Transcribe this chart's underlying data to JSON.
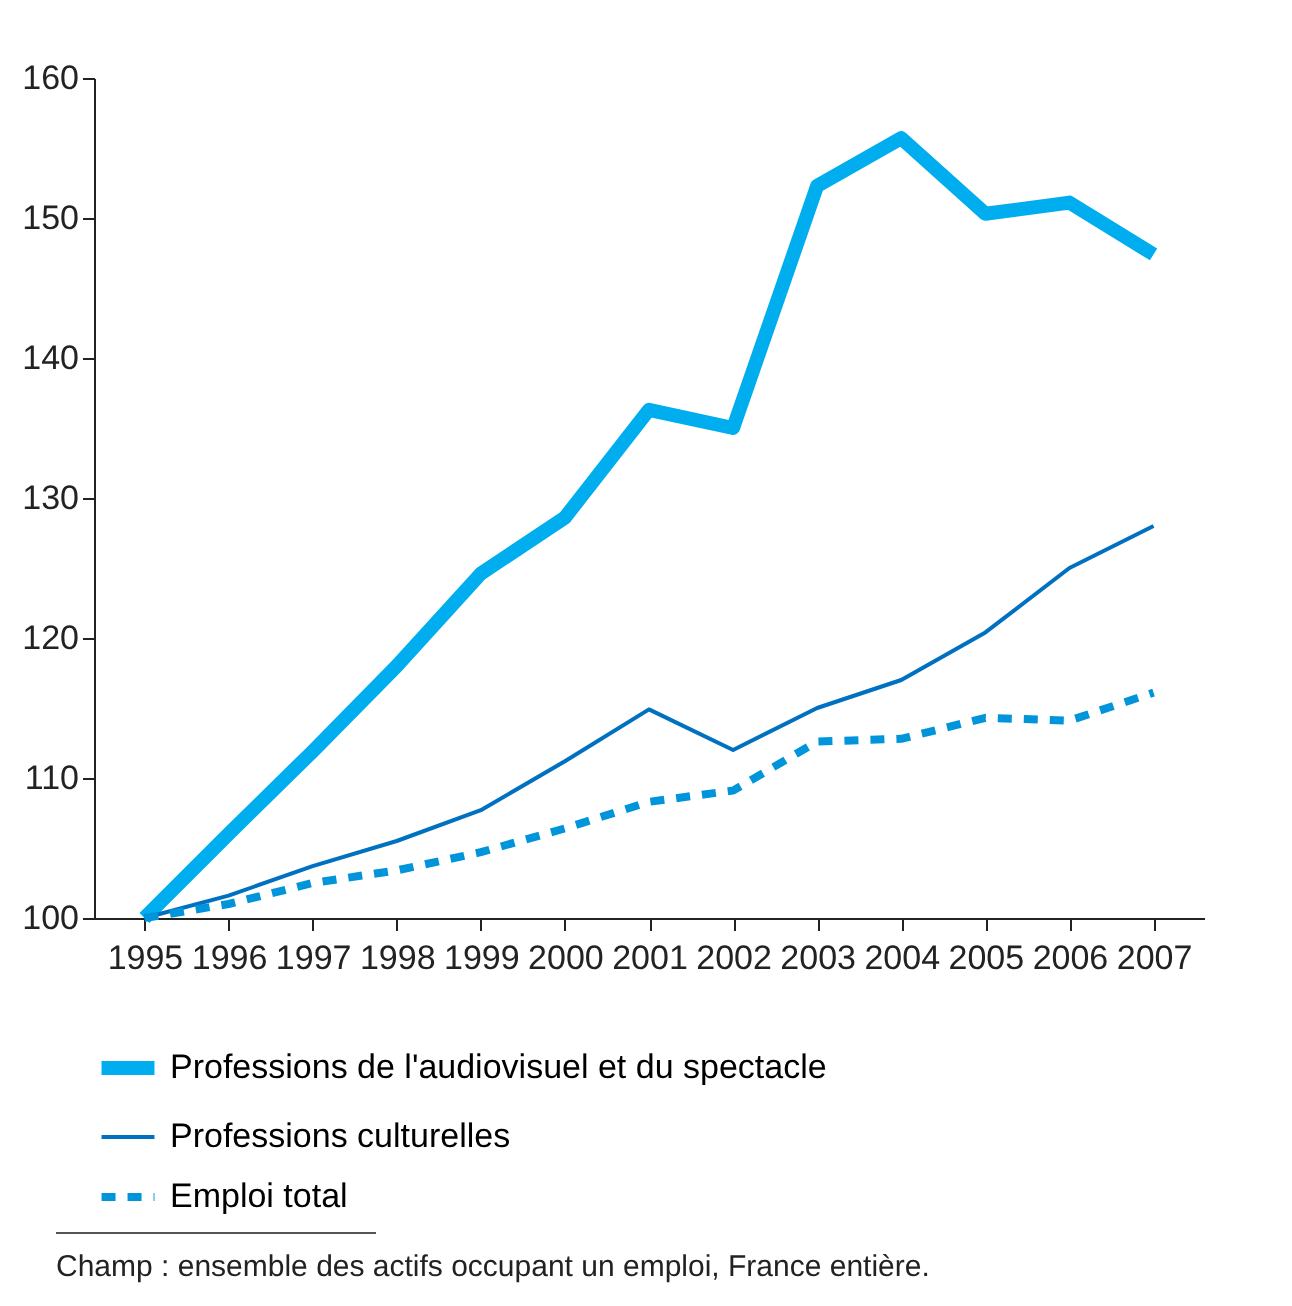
{
  "chart_data": {
    "type": "line",
    "categories": [
      "1995",
      "1996",
      "1997",
      "1998",
      "1999",
      "2000",
      "2001",
      "2002",
      "2003",
      "2004",
      "2005",
      "2006",
      "2007"
    ],
    "series": [
      {
        "name": "Professions de l'audiovisuel et du spectacle",
        "color": "#00aeef",
        "line_style": "solid",
        "values": [
          100,
          106,
          111.9,
          118,
          124.6,
          128.6,
          136.3,
          135,
          152.3,
          155.7,
          150.3,
          151.1,
          147.4
        ]
      },
      {
        "name": "Professions culturelles",
        "color": "#0070c0",
        "line_style": "solid",
        "values": [
          100,
          101.6,
          103.7,
          105.5,
          107.7,
          111.2,
          114.9,
          112,
          115,
          117,
          120.4,
          125,
          128
        ]
      },
      {
        "name": "Emploi total",
        "color": "#0095db",
        "line_style": "dashed",
        "values": [
          100,
          101,
          102.5,
          103.4,
          104.7,
          106.4,
          108.3,
          109.1,
          112.6,
          112.8,
          114.3,
          114.1,
          116.1
        ]
      }
    ],
    "ylim": [
      100,
      160
    ],
    "yticks": [
      100,
      110,
      120,
      130,
      140,
      150,
      160
    ],
    "grid": false,
    "legend": "bottom",
    "marker": "none",
    "annotations": [
      "Champ : ensemble des actifs occupant un emploi, France entière."
    ]
  }
}
